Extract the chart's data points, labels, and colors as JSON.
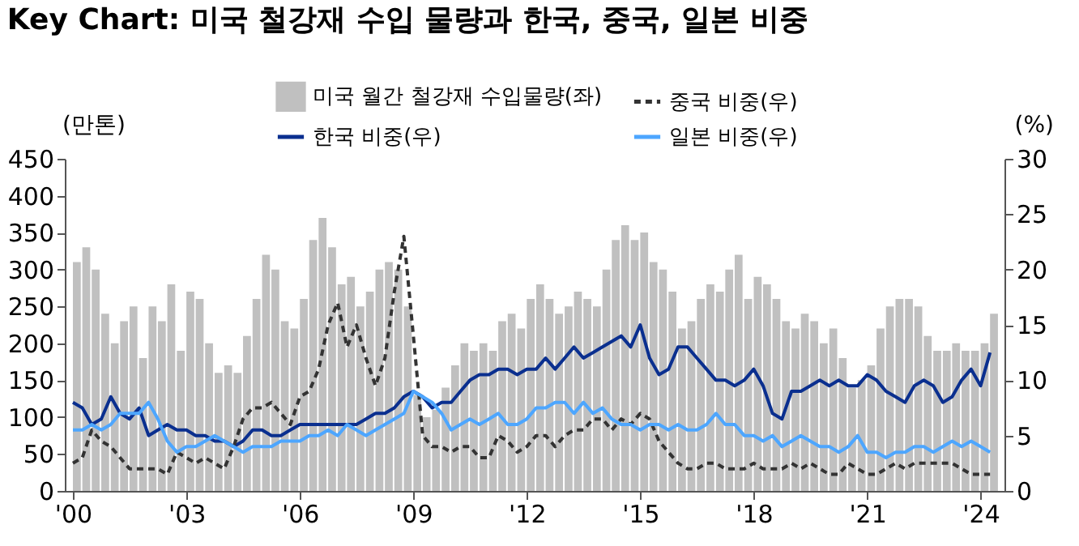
{
  "chart_data": {
    "type": "bar",
    "title": "Key Chart: 미국 철강재 수입 물량과 한국, 중국, 일본 비중",
    "ylabel": "(만톤)",
    "y2label": "(%)",
    "x": [
      "2000-01",
      "2000-04",
      "2000-07",
      "2000-10",
      "2001-01",
      "2001-04",
      "2001-07",
      "2001-10",
      "2002-01",
      "2002-04",
      "2002-07",
      "2002-10",
      "2003-01",
      "2003-04",
      "2003-07",
      "2003-10",
      "2004-01",
      "2004-04",
      "2004-07",
      "2004-10",
      "2005-01",
      "2005-04",
      "2005-07",
      "2005-10",
      "2006-01",
      "2006-04",
      "2006-07",
      "2006-10",
      "2007-01",
      "2007-04",
      "2007-07",
      "2007-10",
      "2008-01",
      "2008-04",
      "2008-07",
      "2008-10",
      "2009-01",
      "2009-04",
      "2009-07",
      "2009-10",
      "2010-01",
      "2010-04",
      "2010-07",
      "2010-10",
      "2011-01",
      "2011-04",
      "2011-07",
      "2011-10",
      "2012-01",
      "2012-04",
      "2012-07",
      "2012-10",
      "2013-01",
      "2013-04",
      "2013-07",
      "2013-10",
      "2014-01",
      "2014-04",
      "2014-07",
      "2014-10",
      "2015-01",
      "2015-04",
      "2015-07",
      "2015-10",
      "2016-01",
      "2016-04",
      "2016-07",
      "2016-10",
      "2017-01",
      "2017-04",
      "2017-07",
      "2017-10",
      "2018-01",
      "2018-04",
      "2018-07",
      "2018-10",
      "2019-01",
      "2019-04",
      "2019-07",
      "2019-10",
      "2020-01",
      "2020-04",
      "2020-07",
      "2020-10",
      "2021-01",
      "2021-04",
      "2021-07",
      "2021-10",
      "2022-01",
      "2022-04",
      "2022-07",
      "2022-10",
      "2023-01",
      "2023-04",
      "2023-07",
      "2023-10",
      "2024-01",
      "2024-04"
    ],
    "xlim": [
      "2000-01",
      "2024-06"
    ],
    "xticks": [
      {
        "value": "2000-01",
        "label": "'00"
      },
      {
        "value": "2003-01",
        "label": "'03"
      },
      {
        "value": "2006-01",
        "label": "'06"
      },
      {
        "value": "2009-01",
        "label": "'09"
      },
      {
        "value": "2012-01",
        "label": "'12"
      },
      {
        "value": "2015-01",
        "label": "'15"
      },
      {
        "value": "2018-01",
        "label": "'18"
      },
      {
        "value": "2021-01",
        "label": "'21"
      },
      {
        "value": "2024-01",
        "label": "'24"
      }
    ],
    "ylim": [
      0,
      450
    ],
    "yticks": [
      0,
      50,
      100,
      150,
      200,
      250,
      300,
      350,
      400,
      450
    ],
    "y2lim": [
      0,
      30
    ],
    "y2ticks": [
      0,
      5,
      10,
      15,
      20,
      25,
      30
    ],
    "legend": "top right",
    "series": [
      {
        "name": "미국 월간 철강재 수입물량(좌)",
        "color": "#c0c0c0",
        "values": [
          310,
          330,
          300,
          240,
          200,
          230,
          250,
          180,
          250,
          230,
          280,
          190,
          270,
          260,
          200,
          160,
          170,
          160,
          210,
          260,
          320,
          300,
          230,
          220,
          260,
          340,
          370,
          330,
          280,
          290,
          250,
          270,
          300,
          310,
          300,
          250,
          130,
          100,
          110,
          140,
          170,
          200,
          190,
          200,
          190,
          230,
          240,
          220,
          260,
          280,
          260,
          240,
          250,
          270,
          260,
          250,
          300,
          340,
          360,
          340,
          350,
          310,
          300,
          270,
          220,
          230,
          260,
          280,
          270,
          300,
          320,
          260,
          290,
          280,
          260,
          230,
          220,
          240,
          230,
          200,
          220,
          180,
          140,
          150,
          170,
          220,
          250,
          260,
          260,
          250,
          210,
          190,
          190,
          200,
          190,
          190,
          200,
          240
        ]
      },
      {
        "name": "한국 비중(우)",
        "type": "line",
        "axis": "y2",
        "line_style": "solid",
        "color": "#0a2f8f",
        "values": [
          8,
          7.5,
          6,
          6.5,
          8.5,
          7,
          6.5,
          7.5,
          5,
          5.5,
          6,
          5.5,
          5.5,
          5,
          5,
          4.5,
          4.5,
          4,
          4.5,
          5.5,
          5.5,
          5,
          5,
          5.5,
          6,
          6,
          6,
          6,
          6,
          6,
          6,
          6.5,
          7,
          7,
          7.5,
          8.5,
          9,
          8.5,
          7.5,
          8,
          8,
          9,
          10,
          10.5,
          10.5,
          11,
          11,
          10.5,
          11,
          11,
          12,
          11,
          12,
          13,
          12,
          12.5,
          13,
          13.5,
          14,
          13,
          15,
          12,
          10.5,
          11,
          13,
          13,
          12,
          11,
          10,
          10,
          9.5,
          10,
          11,
          9.5,
          7,
          6.5,
          9,
          9,
          9.5,
          10,
          9.5,
          10,
          9.5,
          9.5,
          10.5,
          10,
          9,
          8.5,
          8,
          9.5,
          10,
          9.5,
          8,
          8.5,
          10,
          11,
          9.5,
          12.5
        ]
      },
      {
        "name": "중국 비중(우)",
        "type": "line",
        "axis": "y2",
        "line_style": "dashed",
        "color": "#333333",
        "values": [
          2.5,
          3,
          5.5,
          4.5,
          4,
          3,
          2,
          2,
          2,
          2,
          1.5,
          3.5,
          3,
          2.5,
          3,
          2.5,
          2,
          4,
          6.5,
          7.5,
          7.5,
          8,
          7,
          6,
          8.5,
          9,
          11,
          15,
          17,
          13,
          15,
          12,
          9.5,
          12,
          18,
          23,
          14,
          5,
          4,
          4,
          3.5,
          4,
          4,
          3,
          3,
          5,
          4.5,
          3.5,
          4,
          5,
          5,
          4,
          5,
          5.5,
          5.5,
          6.5,
          6.5,
          5.5,
          6.5,
          6,
          7,
          6.5,
          4.5,
          3.5,
          2.5,
          2,
          2,
          2.5,
          2.5,
          2,
          2,
          2,
          2.5,
          2,
          2,
          2,
          2.5,
          2,
          2.5,
          2,
          1.5,
          1.5,
          2.5,
          2,
          1.5,
          1.5,
          2,
          2.5,
          2,
          2.5,
          2.5,
          2.5,
          2.5,
          2.5,
          2,
          1.5,
          1.5,
          1.5
        ]
      },
      {
        "name": "일본 비중(우)",
        "type": "line",
        "axis": "y2",
        "line_style": "solid",
        "color": "#4da6ff",
        "values": [
          5.5,
          5.5,
          6,
          5.5,
          6,
          7,
          7,
          7,
          8,
          6.5,
          4.5,
          3.5,
          4,
          4,
          4.5,
          5,
          4.5,
          4,
          3.5,
          4,
          4,
          4,
          4.5,
          4.5,
          4.5,
          5,
          5,
          5.5,
          5,
          6,
          5.5,
          5,
          5.5,
          6,
          6.5,
          7,
          9,
          8.5,
          8,
          7,
          5.5,
          6,
          6.5,
          6,
          6.5,
          7,
          6,
          6,
          6.5,
          7.5,
          7.5,
          8,
          8,
          7,
          8,
          7,
          7.5,
          6.5,
          6,
          6,
          5.5,
          6,
          6,
          5.5,
          6,
          5.5,
          5.5,
          6,
          7,
          6,
          6,
          5,
          5,
          4.5,
          5,
          4,
          4.5,
          5,
          4.5,
          4,
          4,
          3.5,
          4,
          5,
          3.5,
          3.5,
          3,
          3.5,
          3.5,
          4,
          4,
          3.5,
          4,
          4.5,
          4,
          4.5,
          4,
          3.5
        ]
      }
    ]
  }
}
